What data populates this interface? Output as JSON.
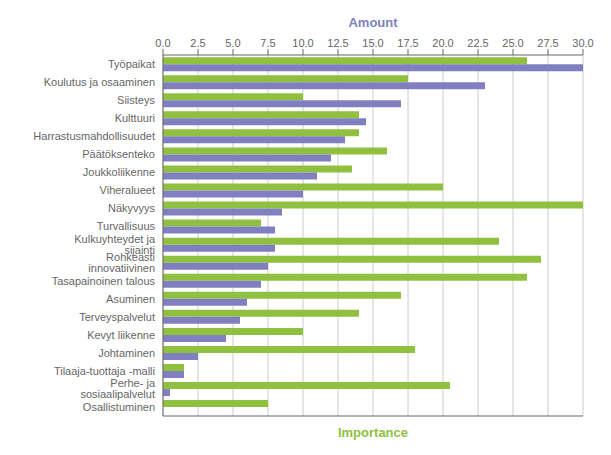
{
  "chart_data": {
    "type": "bar",
    "orientation": "horizontal",
    "categories": [
      "Työpaikat",
      "Koulutus ja osaaminen",
      "Siisteys",
      "Kulttuuri",
      "Harrastusmahdollisuudet",
      "Päätöksenteko",
      "Joukkoliikenne",
      "Viheralueet",
      "Näkyvyys",
      "Turvallisuus",
      "Kulkuyhteydet ja sijainti",
      "Rohkeasti innovatiivinen",
      "Tasapainoinen talous",
      "Asuminen",
      "Terveyspalvelut",
      "Kevyt liikenne",
      "Johtaminen",
      "Tilaaja-tuottaja -malli",
      "Perhe- ja sosiaalipalvelut",
      "Osallistuminen"
    ],
    "series": [
      {
        "name": "Importance",
        "color": "#90c040",
        "values": [
          26,
          17.5,
          10,
          14,
          14,
          16,
          13.5,
          20,
          30,
          7,
          24,
          27,
          26,
          17,
          14,
          10,
          18,
          1.5,
          20.5,
          7.5
        ]
      },
      {
        "name": "Amount",
        "color": "#8080c0",
        "values": [
          30,
          23,
          17,
          14.5,
          13,
          12,
          11,
          10,
          8.5,
          8,
          8,
          7.5,
          7,
          6,
          5.5,
          4.5,
          2.5,
          1.5,
          0.5,
          0
        ]
      }
    ],
    "xlim": [
      0,
      30
    ],
    "xticks": [
      {
        "value": 0,
        "label": "0.0"
      },
      2.5,
      {
        "value": 5,
        "label": "5.0"
      },
      7.5,
      {
        "value": 10,
        "label": "10.0"
      },
      12.5,
      {
        "value": 15,
        "label": "15.0"
      },
      17.5,
      {
        "value": 20,
        "label": "20.0"
      },
      22.5,
      {
        "value": 25,
        "label": "25.0"
      },
      27.5,
      {
        "value": 30,
        "label": "30.0"
      }
    ],
    "grid": true
  }
}
